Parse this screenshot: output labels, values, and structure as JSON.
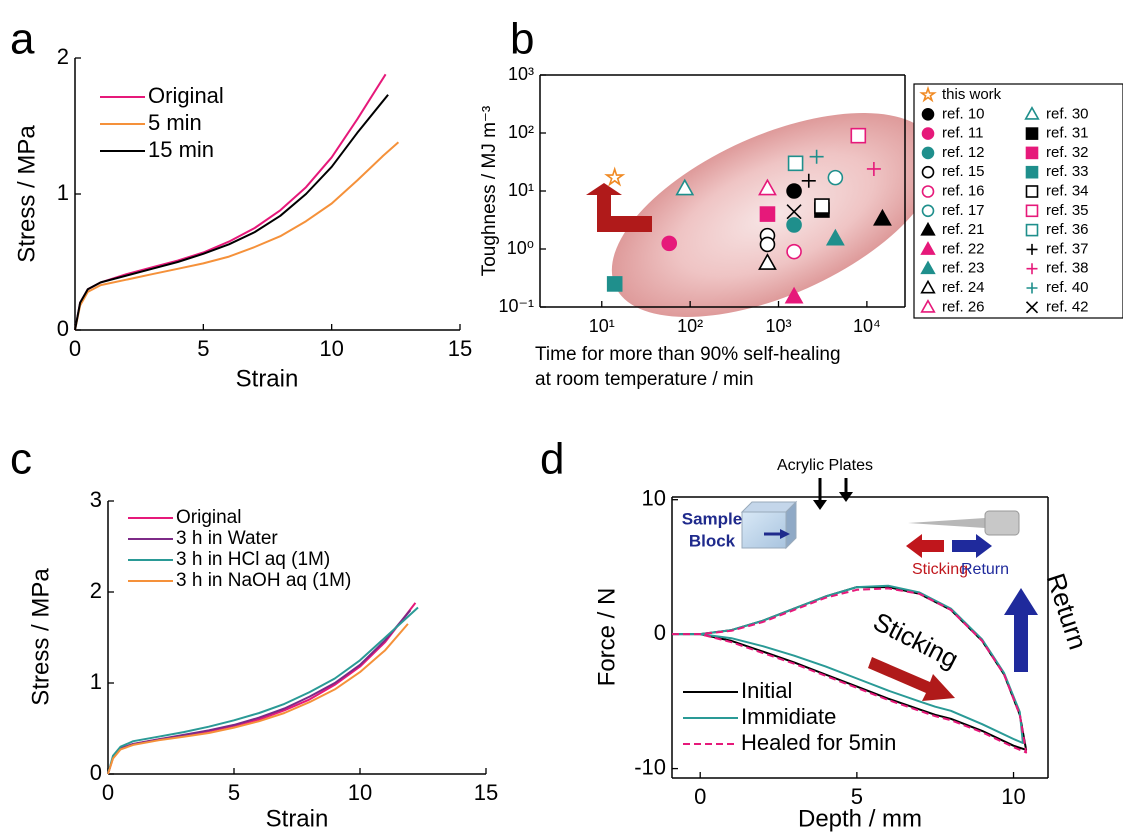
{
  "chart_data": [
    {
      "type": "line",
      "panel": "a",
      "xlabel": "Strain",
      "ylabel": "Stress / MPa",
      "xlim": [
        0,
        15
      ],
      "xticks": [
        0,
        5,
        10,
        15
      ],
      "ylim": [
        0,
        2
      ],
      "yticks": [
        0,
        1,
        2
      ],
      "legend": "upper left",
      "series": [
        {
          "name": "Original",
          "color": "#e6197a",
          "x": [
            0,
            0.2,
            0.5,
            1,
            2,
            3,
            4,
            5,
            6,
            7,
            8,
            9,
            10,
            11,
            12.1
          ],
          "values": [
            0,
            0.2,
            0.3,
            0.35,
            0.41,
            0.46,
            0.51,
            0.57,
            0.65,
            0.75,
            0.88,
            1.05,
            1.27,
            1.55,
            1.88
          ]
        },
        {
          "name": "5 min",
          "color": "#f5913a",
          "x": [
            0,
            0.2,
            0.5,
            1,
            2,
            3,
            4,
            5,
            6,
            7,
            8,
            9,
            10,
            11,
            12,
            12.6
          ],
          "values": [
            0,
            0.18,
            0.28,
            0.33,
            0.37,
            0.41,
            0.45,
            0.49,
            0.54,
            0.61,
            0.69,
            0.8,
            0.93,
            1.1,
            1.28,
            1.38
          ]
        },
        {
          "name": "15 min",
          "color": "#000000",
          "x": [
            0,
            0.2,
            0.5,
            1,
            2,
            3,
            4,
            5,
            6,
            7,
            8,
            9,
            10,
            11,
            12.2
          ],
          "values": [
            0,
            0.2,
            0.3,
            0.35,
            0.4,
            0.45,
            0.5,
            0.56,
            0.63,
            0.72,
            0.84,
            1.0,
            1.2,
            1.45,
            1.73
          ]
        }
      ]
    },
    {
      "type": "scatter",
      "panel": "b",
      "xlabel": [
        "Time for more than 90% self-healing",
        "at room temperature / min"
      ],
      "ylabel": "Toughness / MJ m⁻³",
      "xscale": "log",
      "yscale": "log",
      "xlim": [
        2,
        27000
      ],
      "ylim": [
        0.1,
        1000
      ],
      "xticks": [
        {
          "value": 10,
          "label": "10¹"
        },
        {
          "value": 100,
          "label": "10²"
        },
        {
          "value": 1000,
          "label": "10³"
        },
        {
          "value": 10000,
          "label": "10⁴"
        }
      ],
      "yticks": [
        {
          "value": 0.1,
          "label": "10⁻¹"
        },
        {
          "value": 1,
          "label": "10⁰"
        },
        {
          "value": 10,
          "label": "10¹"
        },
        {
          "value": 100,
          "label": "10²"
        },
        {
          "value": 1000,
          "label": "10³"
        }
      ],
      "legend": "outside right",
      "series": [
        {
          "name": "this work",
          "color": "#f08a24",
          "marker": "star",
          "filled": false,
          "x": [
            14
          ],
          "values": [
            17
          ]
        },
        {
          "name": "ref. 10",
          "color": "#000000",
          "marker": "circle",
          "filled": true,
          "x": [
            1500
          ],
          "values": [
            10
          ]
        },
        {
          "name": "ref. 11",
          "color": "#e6197a",
          "marker": "circle",
          "filled": true,
          "x": [
            58
          ],
          "values": [
            1.25
          ]
        },
        {
          "name": "ref. 12",
          "color": "#1f8f8c",
          "marker": "circle",
          "filled": true,
          "x": [
            1500
          ],
          "values": [
            2.6
          ]
        },
        {
          "name": "ref. 15",
          "color": "#000000",
          "marker": "circle",
          "filled": false,
          "x": [
            750,
            750
          ],
          "values": [
            1.7,
            1.2
          ]
        },
        {
          "name": "ref. 16",
          "color": "#e6197a",
          "marker": "circle",
          "filled": false,
          "x": [
            1500
          ],
          "values": [
            0.9
          ]
        },
        {
          "name": "ref. 17",
          "color": "#1f8f8c",
          "marker": "circle",
          "filled": false,
          "x": [
            4400
          ],
          "values": [
            17
          ]
        },
        {
          "name": "ref. 21",
          "color": "#000000",
          "marker": "triangle",
          "filled": true,
          "x": [
            15000
          ],
          "values": [
            3.3
          ]
        },
        {
          "name": "ref. 22",
          "color": "#e6197a",
          "marker": "triangle",
          "filled": true,
          "x": [
            1500
          ],
          "values": [
            0.15
          ]
        },
        {
          "name": "ref. 23",
          "color": "#1f8f8c",
          "marker": "triangle",
          "filled": true,
          "x": [
            4400
          ],
          "values": [
            1.5
          ]
        },
        {
          "name": "ref. 24",
          "color": "#000000",
          "marker": "triangle",
          "filled": false,
          "x": [
            750
          ],
          "values": [
            0.57
          ]
        },
        {
          "name": "ref. 26",
          "color": "#e6197a",
          "marker": "triangle",
          "filled": false,
          "x": [
            750
          ],
          "values": [
            11
          ]
        },
        {
          "name": "ref. 30",
          "color": "#1f8f8c",
          "marker": "triangle",
          "filled": false,
          "x": [
            87
          ],
          "values": [
            11
          ]
        },
        {
          "name": "ref. 31",
          "color": "#000000",
          "marker": "square",
          "filled": true,
          "x": [
            3100
          ],
          "values": [
            4.7
          ]
        },
        {
          "name": "ref. 32",
          "color": "#e6197a",
          "marker": "square",
          "filled": true,
          "x": [
            750
          ],
          "values": [
            4
          ]
        },
        {
          "name": "ref. 33",
          "color": "#1f8f8c",
          "marker": "square",
          "filled": true,
          "x": [
            14
          ],
          "values": [
            0.25
          ]
        },
        {
          "name": "ref. 34",
          "color": "#000000",
          "marker": "square",
          "filled": false,
          "x": [
            3100
          ],
          "values": [
            5.5
          ]
        },
        {
          "name": "ref. 35",
          "color": "#e6197a",
          "marker": "square",
          "filled": false,
          "x": [
            8000
          ],
          "values": [
            90
          ]
        },
        {
          "name": "ref. 36",
          "color": "#1f8f8c",
          "marker": "square",
          "filled": false,
          "x": [
            1560
          ],
          "values": [
            30
          ]
        },
        {
          "name": "ref. 37",
          "color": "#000000",
          "marker": "plus",
          "filled": false,
          "x": [
            2200
          ],
          "values": [
            15
          ]
        },
        {
          "name": "ref. 38",
          "color": "#e6197a",
          "marker": "plus",
          "filled": false,
          "x": [
            12000
          ],
          "values": [
            24
          ]
        },
        {
          "name": "ref. 40",
          "color": "#1f8f8c",
          "marker": "plus",
          "filled": false,
          "x": [
            2700
          ],
          "values": [
            39
          ]
        },
        {
          "name": "ref. 42",
          "color": "#000000",
          "marker": "x",
          "filled": false,
          "x": [
            1500
          ],
          "values": [
            4.4
          ]
        }
      ]
    },
    {
      "type": "line",
      "panel": "c",
      "xlabel": "Strain",
      "ylabel": "Stress / MPa",
      "xlim": [
        0,
        15
      ],
      "xticks": [
        0,
        5,
        10,
        15
      ],
      "ylim": [
        0,
        3
      ],
      "yticks": [
        0,
        1,
        2,
        3
      ],
      "legend": "upper left",
      "series": [
        {
          "name": "Original",
          "color": "#e6197a",
          "x": [
            0,
            0.2,
            0.5,
            1,
            2,
            3,
            4,
            5,
            6,
            7,
            8,
            9,
            10,
            11,
            12.2
          ],
          "values": [
            0,
            0.18,
            0.28,
            0.33,
            0.38,
            0.42,
            0.47,
            0.53,
            0.6,
            0.7,
            0.82,
            0.98,
            1.18,
            1.45,
            1.88
          ]
        },
        {
          "name": "3 h in Water",
          "color": "#7d2a87",
          "x": [
            0,
            0.2,
            0.5,
            1,
            2,
            3,
            4,
            5,
            6,
            7,
            8,
            9,
            10,
            11,
            12
          ],
          "values": [
            0,
            0.18,
            0.28,
            0.33,
            0.38,
            0.43,
            0.48,
            0.54,
            0.62,
            0.72,
            0.85,
            1.0,
            1.2,
            1.47,
            1.8
          ]
        },
        {
          "name": "3 h in HCl aq (1M)",
          "color": "#2a9a96",
          "x": [
            0,
            0.2,
            0.5,
            1,
            2,
            3,
            4,
            5,
            6,
            7,
            8,
            9,
            10,
            11,
            12.3
          ],
          "values": [
            0,
            0.2,
            0.3,
            0.36,
            0.41,
            0.46,
            0.52,
            0.59,
            0.67,
            0.77,
            0.9,
            1.05,
            1.25,
            1.5,
            1.83
          ]
        },
        {
          "name": "3 h in NaOH aq (1M)",
          "color": "#f5913a",
          "x": [
            0,
            0.2,
            0.5,
            1,
            2,
            3,
            4,
            5,
            6,
            7,
            8,
            9,
            10,
            11,
            11.9
          ],
          "values": [
            0,
            0.17,
            0.27,
            0.32,
            0.37,
            0.41,
            0.45,
            0.51,
            0.58,
            0.67,
            0.79,
            0.93,
            1.12,
            1.36,
            1.65
          ]
        }
      ]
    },
    {
      "type": "line",
      "panel": "d",
      "xlabel": "Depth / mm",
      "ylabel": "Force / N",
      "xlim": [
        -0.9,
        11.1
      ],
      "xticks": [
        0,
        5,
        10
      ],
      "ylim": [
        -10.7,
        10.2
      ],
      "yticks": [
        -10,
        0,
        10
      ],
      "legend": "lower left",
      "inset": {
        "plates": "Acrylic Plates",
        "block": [
          "Sample",
          "Block"
        ],
        "left_arrow": "Sticking",
        "right_arrow": "Return"
      },
      "annotations": [
        "Sticking",
        "Return"
      ],
      "series": [
        {
          "name": "Initial",
          "color": "#000000",
          "dash": false,
          "x": [
            -0.9,
            0,
            1,
            2,
            3,
            4,
            5,
            6,
            7,
            8,
            9,
            9.7,
            10.2,
            10.4,
            10,
            9,
            8,
            7.5,
            7,
            6,
            5,
            4,
            3,
            2,
            1,
            0
          ],
          "values": [
            0,
            0,
            0.3,
            1.0,
            1.9,
            2.8,
            3.5,
            3.5,
            3.0,
            1.8,
            -0.5,
            -3,
            -6,
            -8.6,
            -8.3,
            -7.2,
            -6.3,
            -6.0,
            -5.6,
            -4.8,
            -3.9,
            -3.0,
            -2.1,
            -1.3,
            -0.5,
            0
          ]
        },
        {
          "name": "Immidiate",
          "color": "#2a9a96",
          "dash": false,
          "x": [
            -0.9,
            0,
            1,
            2,
            3,
            4,
            5,
            6,
            7,
            8,
            9,
            9.7,
            10.2,
            10.3,
            10,
            9,
            8,
            7.5,
            7,
            6,
            5,
            4,
            3,
            2,
            1,
            0
          ],
          "values": [
            0,
            0,
            0.3,
            1.0,
            1.9,
            2.8,
            3.5,
            3.6,
            3.1,
            1.9,
            -0.4,
            -2.9,
            -5.8,
            -8.1,
            -7.8,
            -6.7,
            -5.7,
            -5.4,
            -5.0,
            -4.2,
            -3.3,
            -2.4,
            -1.6,
            -0.9,
            -0.3,
            0
          ]
        },
        {
          "name": "Healed for 5min",
          "color": "#e6197a",
          "dash": true,
          "x": [
            -0.9,
            0,
            1,
            2,
            3,
            4,
            5,
            6,
            7,
            8,
            9,
            9.7,
            10.2,
            10.4,
            10,
            9,
            8,
            7.5,
            7,
            6,
            5,
            4,
            3,
            2,
            1,
            0
          ],
          "values": [
            0,
            0,
            0.25,
            0.9,
            1.8,
            2.7,
            3.3,
            3.4,
            3.0,
            1.8,
            -0.5,
            -3,
            -6,
            -8.8,
            -8.4,
            -7.3,
            -6.4,
            -6.1,
            -5.7,
            -4.9,
            -4.0,
            -3.1,
            -2.2,
            -1.4,
            -0.6,
            0
          ]
        }
      ]
    }
  ]
}
